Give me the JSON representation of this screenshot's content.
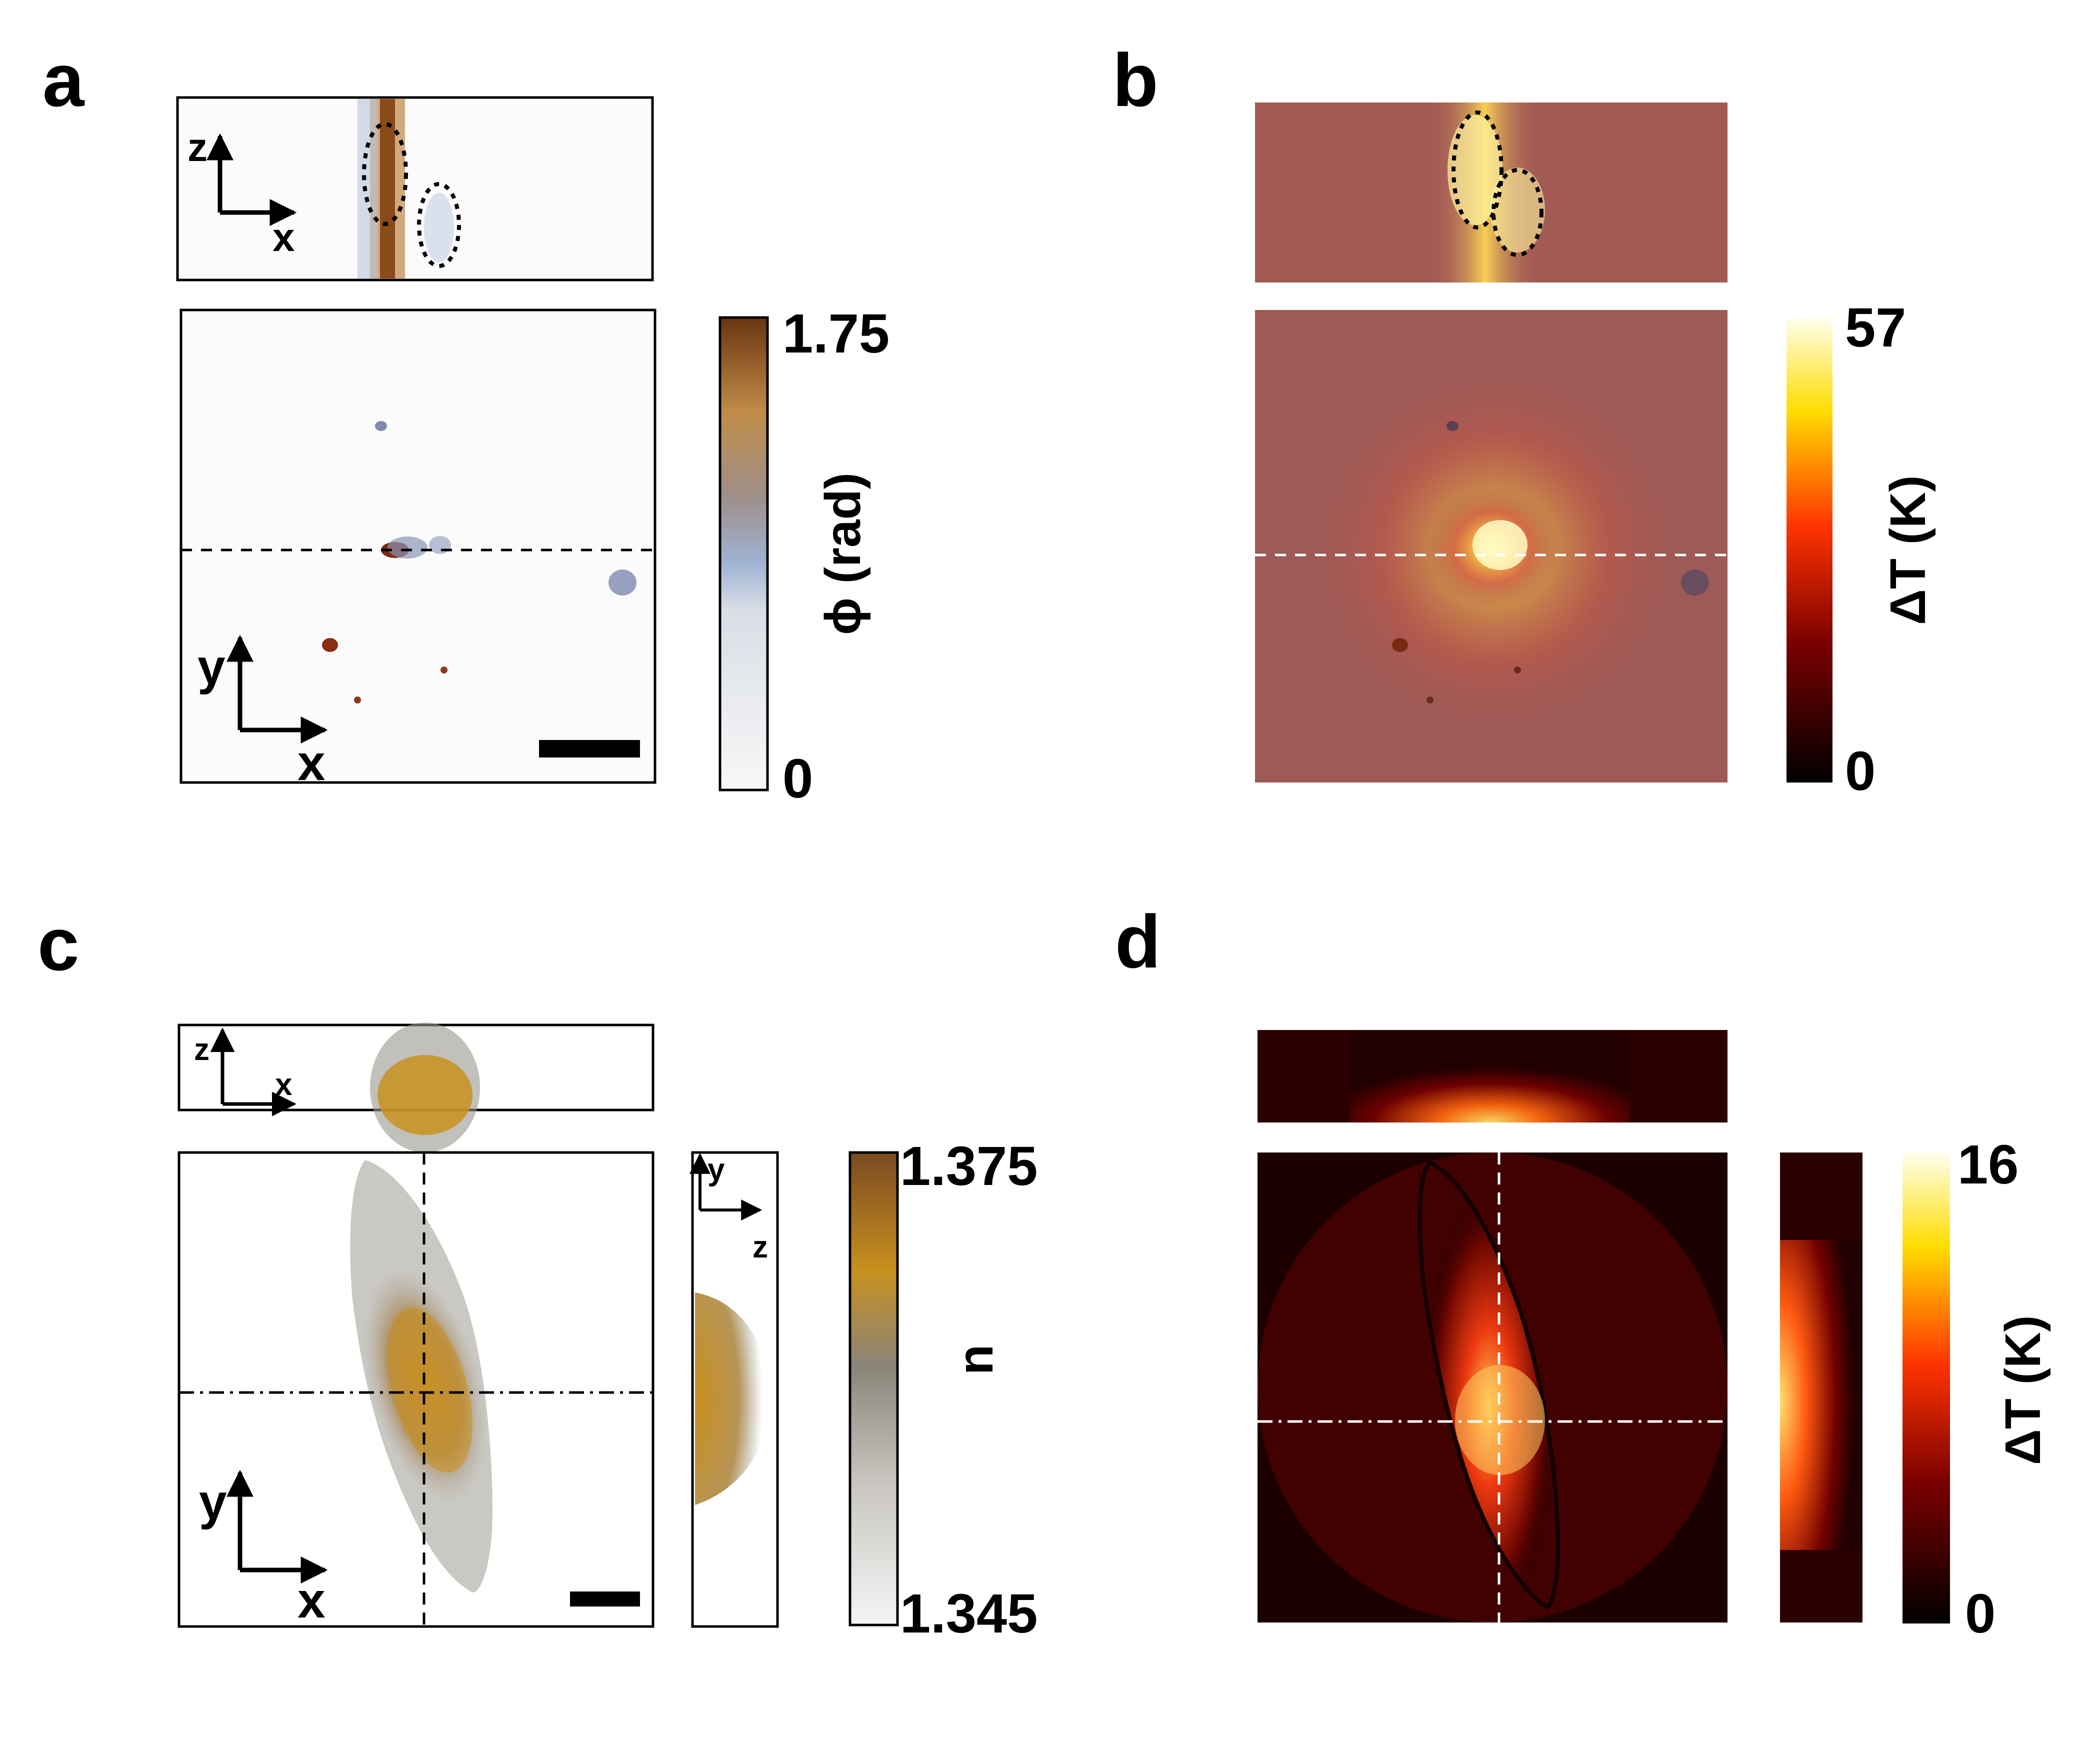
{
  "figure": {
    "panels": [
      {
        "label": "a",
        "colorbar": {
          "max": "1.75",
          "min": "0",
          "title": "ϕ (rad)",
          "colors": [
            "#f5f5f5",
            "#93a9cc",
            "#b88a4a",
            "#6a3410"
          ]
        }
      },
      {
        "label": "b",
        "colorbar": {
          "max": "57",
          "min": "0",
          "title": "ΔT (K)",
          "colors": [
            "#000000",
            "#7a0000",
            "#ff3300",
            "#ffdd00",
            "#ffffee"
          ]
        }
      },
      {
        "label": "c",
        "colorbar": {
          "max": "1.375",
          "min": "1.345",
          "title": "n",
          "colors": [
            "#f2f2f2",
            "#8a8478",
            "#c8901e",
            "#7a4a20"
          ]
        }
      },
      {
        "label": "d",
        "colorbar": {
          "max": "16",
          "min": "0",
          "title": "ΔT (K)",
          "colors": [
            "#000000",
            "#7a0000",
            "#ff3300",
            "#ffdd00",
            "#ffffee"
          ]
        }
      }
    ],
    "axes": {
      "x": "x",
      "y": "y",
      "z": "z"
    }
  }
}
